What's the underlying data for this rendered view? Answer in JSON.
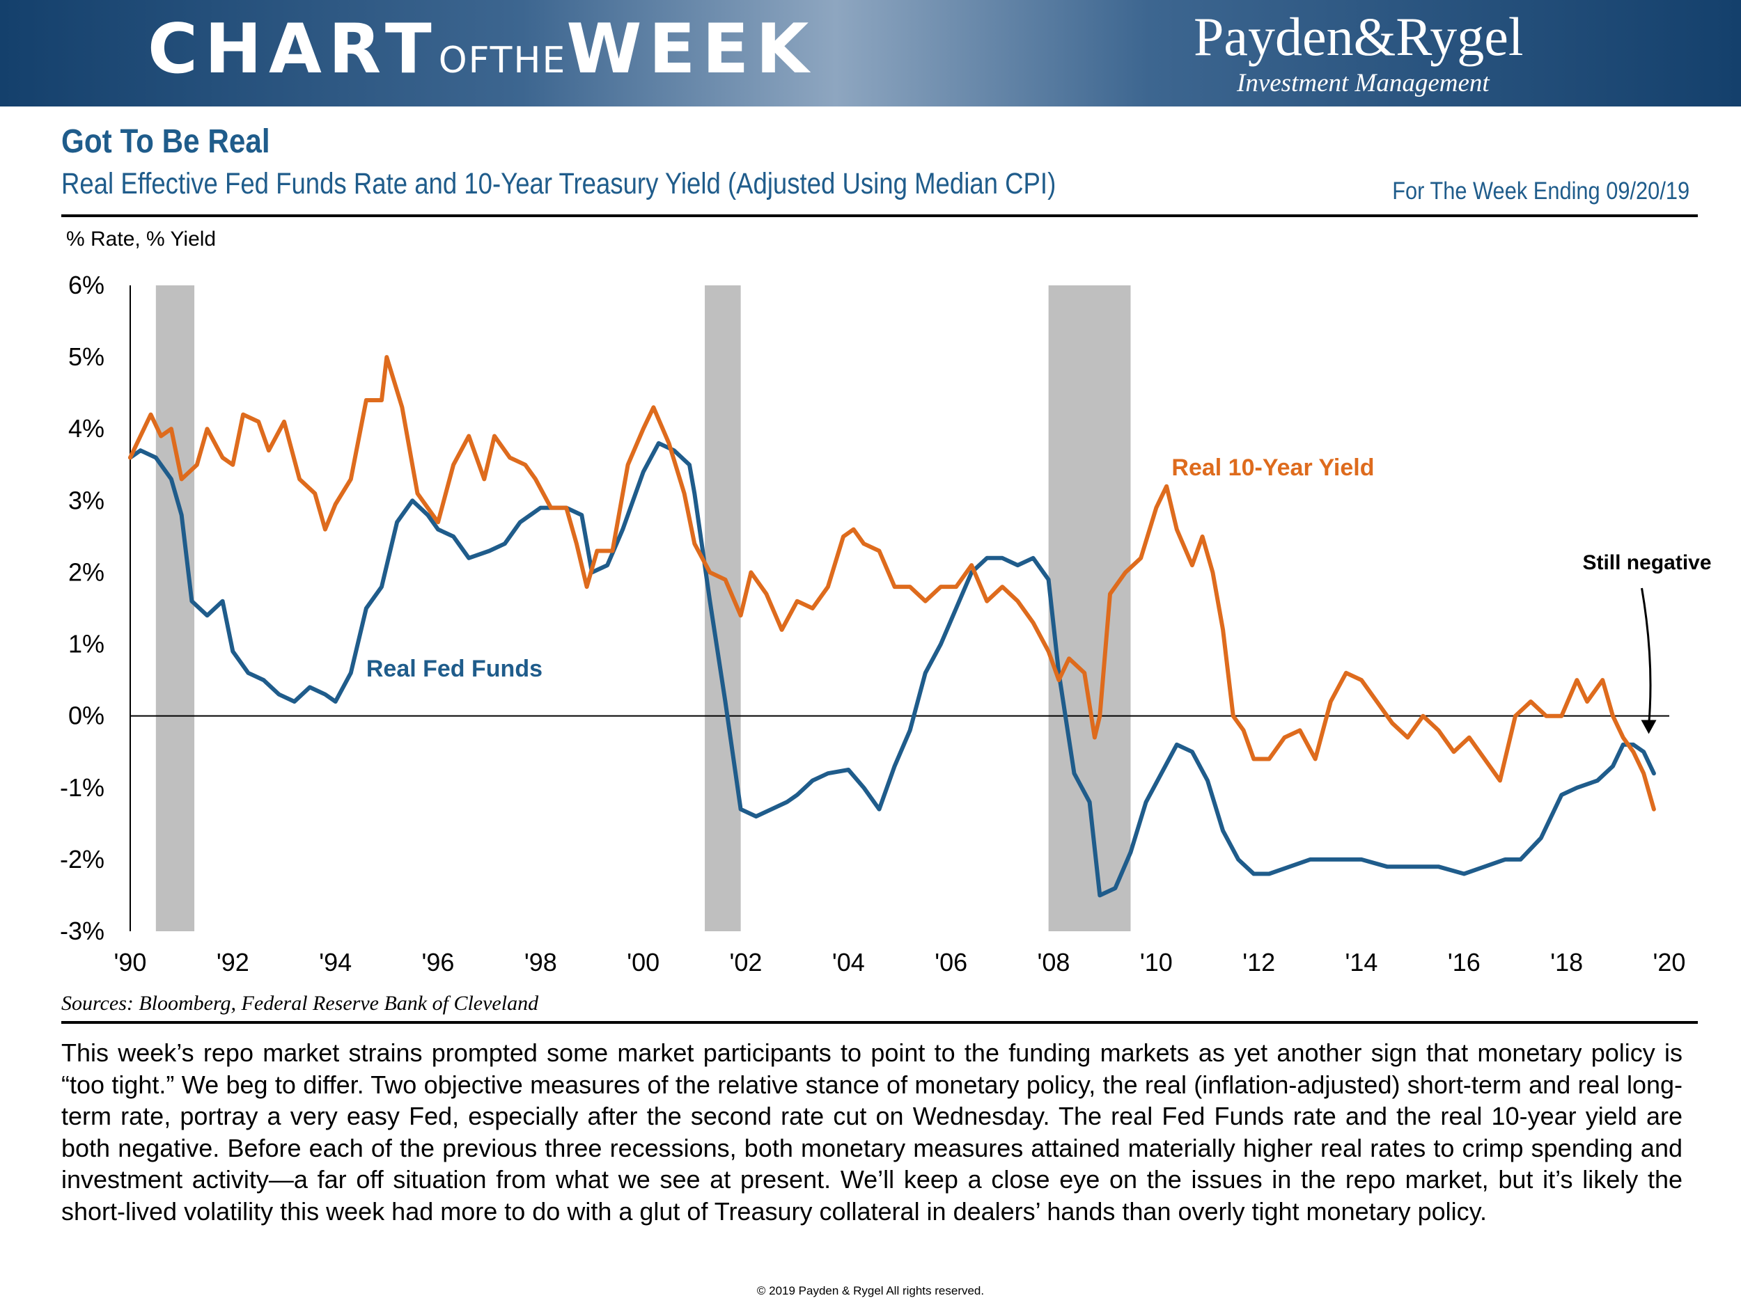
{
  "header": {
    "title_big_1": "CHART",
    "title_small": "OFTHE",
    "title_big_2": "WEEK",
    "brand_name": "Payden&Rygel",
    "brand_sub": "Investment Management"
  },
  "chart_title": "Got To Be Real",
  "chart_subtitle": "Real Effective Fed Funds Rate and 10-Year Treasury Yield (Adjusted Using Median CPI)",
  "week_ending": "For The Week Ending 09/20/19",
  "unit_label": "% Rate,  % Yield",
  "sources": "Sources: Bloomberg, Federal Reserve Bank of Cleveland",
  "body_text": "This week’s repo market strains prompted some market participants to point to the funding markets as yet another sign that monetary policy is “too tight.” We beg to differ. Two objective measures of the relative stance of monetary policy, the real (inflation-adjusted) short-term and real long-term rate, portray a very easy Fed, especially after the second rate cut on Wednesday. The real Fed Funds rate and the real 10-year yield are both negative. Before each of the previous three recessions, both monetary measures attained materially higher real rates to crimp spending and investment activity—a far off situation from what we see at present. We’ll keep a close eye on the issues in the repo market, but it’s likely the short-lived volatility this week had more to do with a glut of Treasury collateral in dealers’ hands than overly tight monetary policy.",
  "copyright": "© 2019 Payden & Rygel All rights reserved.",
  "colors": {
    "banner": "#1c4a78",
    "title": "#1f5c8b",
    "fed_funds": "#1f5c8b",
    "ten_year": "#de6b1d",
    "recession": "#bfbfbf"
  },
  "chart_data": {
    "type": "line",
    "title": "Real Effective Fed Funds Rate and 10-Year Treasury Yield (Adjusted Using Median CPI)",
    "ylabel": "% Rate,  % Yield",
    "xlabel": "",
    "xlim": [
      1990,
      2020
    ],
    "ylim": [
      -3,
      6
    ],
    "x_ticks": [
      1990,
      1992,
      1994,
      1996,
      1998,
      2000,
      2002,
      2004,
      2006,
      2008,
      2010,
      2012,
      2014,
      2016,
      2018,
      2020
    ],
    "x_tick_labels": [
      "'90",
      "'92",
      "'94",
      "'96",
      "'98",
      "'00",
      "'02",
      "'04",
      "'06",
      "'08",
      "'10",
      "'12",
      "'14",
      "'16",
      "'18",
      "'20"
    ],
    "y_ticks": [
      6,
      5,
      4,
      3,
      2,
      1,
      0,
      -1,
      -2,
      -3
    ],
    "y_tick_labels": [
      "6%",
      "5%",
      "4%",
      "3%",
      "2%",
      "1%",
      "0%",
      "-1%",
      "-2%",
      "-3%"
    ],
    "recessions": [
      [
        1990.5,
        1991.25
      ],
      [
        2001.2,
        2001.9
      ],
      [
        2007.9,
        2009.5
      ]
    ],
    "annotations": [
      {
        "text": "Still negative",
        "x": 2019.6,
        "y": -0.25
      }
    ],
    "series": [
      {
        "name": "Real Fed Funds",
        "label_x": 1994.6,
        "label_y": 0.55,
        "x": [
          1990,
          1990.2,
          1990.5,
          1990.8,
          1991,
          1991.2,
          1991.5,
          1991.8,
          1992,
          1992.3,
          1992.6,
          1992.9,
          1993.2,
          1993.5,
          1993.8,
          1994,
          1994.3,
          1994.6,
          1994.9,
          1995.2,
          1995.5,
          1995.8,
          1996,
          1996.3,
          1996.6,
          1997,
          1997.3,
          1997.6,
          1998,
          1998.3,
          1998.5,
          1998.8,
          1999,
          1999.3,
          1999.6,
          2000,
          2000.3,
          2000.6,
          2000.9,
          2001,
          2001.3,
          2001.6,
          2001.9,
          2002.2,
          2002.5,
          2002.8,
          2003,
          2003.3,
          2003.6,
          2004,
          2004.3,
          2004.6,
          2004.9,
          2005.2,
          2005.5,
          2005.8,
          2006.1,
          2006.4,
          2006.7,
          2007,
          2007.3,
          2007.6,
          2007.9,
          2008.1,
          2008.4,
          2008.7,
          2008.9,
          2009.2,
          2009.5,
          2009.8,
          2010.1,
          2010.4,
          2010.7,
          2011,
          2011.3,
          2011.6,
          2011.9,
          2012.2,
          2012.6,
          2013,
          2013.5,
          2014,
          2014.5,
          2015,
          2015.5,
          2016,
          2016.4,
          2016.8,
          2017.1,
          2017.5,
          2017.9,
          2018.2,
          2018.6,
          2018.9,
          2019.1,
          2019.3,
          2019.5,
          2019.7
        ],
        "values": [
          3.6,
          3.7,
          3.6,
          3.3,
          2.8,
          1.6,
          1.4,
          1.6,
          0.9,
          0.6,
          0.5,
          0.3,
          0.2,
          0.4,
          0.3,
          0.2,
          0.6,
          1.5,
          1.8,
          2.7,
          3.0,
          2.8,
          2.6,
          2.5,
          2.2,
          2.3,
          2.4,
          2.7,
          2.9,
          2.9,
          2.9,
          2.8,
          2.0,
          2.1,
          2.6,
          3.4,
          3.8,
          3.7,
          3.5,
          3.1,
          1.6,
          0.2,
          -1.3,
          -1.4,
          -1.3,
          -1.2,
          -1.1,
          -0.9,
          -0.8,
          -0.75,
          -1.0,
          -1.3,
          -0.7,
          -0.2,
          0.6,
          1.0,
          1.5,
          2.0,
          2.2,
          2.2,
          2.1,
          2.2,
          1.9,
          0.6,
          -0.8,
          -1.2,
          -2.5,
          -2.4,
          -1.9,
          -1.2,
          -0.8,
          -0.4,
          -0.5,
          -0.9,
          -1.6,
          -2.0,
          -2.2,
          -2.2,
          -2.1,
          -2.0,
          -2.0,
          -2.0,
          -2.1,
          -2.1,
          -2.1,
          -2.2,
          -2.1,
          -2.0,
          -2.0,
          -1.7,
          -1.1,
          -1.0,
          -0.9,
          -0.7,
          -0.4,
          -0.4,
          -0.5,
          -0.8
        ]
      },
      {
        "name": "Real 10-Year Yield",
        "label_x": 2010.3,
        "label_y": 3.35,
        "x": [
          1990,
          1990.2,
          1990.4,
          1990.6,
          1990.8,
          1991,
          1991.3,
          1991.5,
          1991.8,
          1992,
          1992.2,
          1992.5,
          1992.7,
          1993,
          1993.3,
          1993.6,
          1993.8,
          1994,
          1994.3,
          1994.6,
          1994.9,
          1995,
          1995.3,
          1995.6,
          1995.9,
          1996,
          1996.3,
          1996.6,
          1996.9,
          1997.1,
          1997.4,
          1997.7,
          1997.9,
          1998.2,
          1998.5,
          1998.7,
          1998.9,
          1999.1,
          1999.4,
          1999.7,
          2000,
          2000.2,
          2000.5,
          2000.8,
          2001,
          2001.3,
          2001.6,
          2001.9,
          2002.1,
          2002.4,
          2002.7,
          2003,
          2003.3,
          2003.6,
          2003.9,
          2004.1,
          2004.3,
          2004.6,
          2004.9,
          2005.2,
          2005.5,
          2005.8,
          2006.1,
          2006.4,
          2006.7,
          2007,
          2007.3,
          2007.6,
          2007.9,
          2008.1,
          2008.3,
          2008.6,
          2008.8,
          2008.9,
          2009.1,
          2009.4,
          2009.7,
          2010,
          2010.2,
          2010.4,
          2010.7,
          2010.9,
          2011.1,
          2011.3,
          2011.5,
          2011.7,
          2011.9,
          2012.2,
          2012.5,
          2012.8,
          2013.1,
          2013.4,
          2013.7,
          2014,
          2014.3,
          2014.6,
          2014.9,
          2015.2,
          2015.5,
          2015.8,
          2016.1,
          2016.4,
          2016.7,
          2017,
          2017.3,
          2017.6,
          2017.9,
          2018.2,
          2018.4,
          2018.7,
          2018.9,
          2019.1,
          2019.3,
          2019.5,
          2019.7
        ],
        "values": [
          3.6,
          3.9,
          4.2,
          3.9,
          4.0,
          3.3,
          3.5,
          4.0,
          3.6,
          3.5,
          4.2,
          4.1,
          3.7,
          4.1,
          3.3,
          3.1,
          2.6,
          2.95,
          3.3,
          4.4,
          4.4,
          5.0,
          4.3,
          3.1,
          2.8,
          2.7,
          3.5,
          3.9,
          3.3,
          3.9,
          3.6,
          3.5,
          3.3,
          2.9,
          2.9,
          2.4,
          1.8,
          2.3,
          2.3,
          3.5,
          4.0,
          4.3,
          3.8,
          3.1,
          2.4,
          2.0,
          1.9,
          1.4,
          2.0,
          1.7,
          1.2,
          1.6,
          1.5,
          1.8,
          2.5,
          2.6,
          2.4,
          2.3,
          1.8,
          1.8,
          1.6,
          1.8,
          1.8,
          2.1,
          1.6,
          1.8,
          1.6,
          1.3,
          0.9,
          0.5,
          0.8,
          0.6,
          -0.3,
          0.0,
          1.7,
          2.0,
          2.2,
          2.9,
          3.2,
          2.6,
          2.1,
          2.5,
          2.0,
          1.2,
          0.0,
          -0.2,
          -0.6,
          -0.6,
          -0.3,
          -0.2,
          -0.6,
          0.2,
          0.6,
          0.5,
          0.2,
          -0.1,
          -0.3,
          0.0,
          -0.2,
          -0.5,
          -0.3,
          -0.6,
          -0.9,
          0.0,
          0.2,
          0.0,
          0.0,
          0.5,
          0.2,
          0.5,
          0.0,
          -0.3,
          -0.5,
          -0.8,
          -1.3
        ]
      }
    ]
  }
}
